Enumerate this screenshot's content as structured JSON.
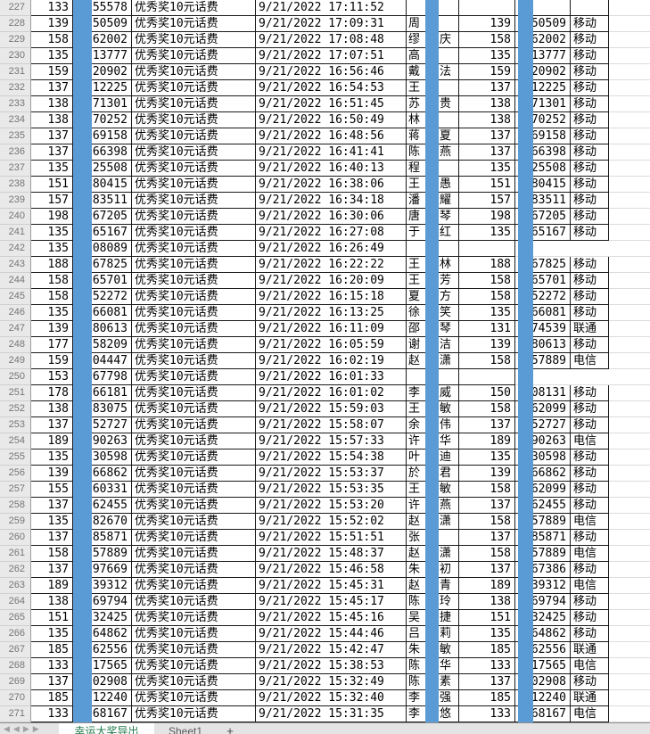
{
  "meta": {
    "app_kind": "spreadsheet",
    "visible_row_range": "227-271",
    "mask_color": "#5B9BD5",
    "row_header_bg": "#e9e9e9",
    "active_tab_text_color": "#217a4b"
  },
  "sheet": {
    "nav_icons": [
      "first-sheet-icon",
      "prev-sheet-icon",
      "next-sheet-icon",
      "last-sheet-icon"
    ],
    "nav_glyphs": "◀ ◀ ▶ ▶",
    "tabs": [
      {
        "label": "幸运大奖导出",
        "active": true
      },
      {
        "label": "Sheet1",
        "active": false
      }
    ],
    "add_label": "+"
  },
  "columns": {
    "row_header": "",
    "phone_prefix": "",
    "masked": "",
    "phone_suffix": "",
    "prize": "",
    "datetime": "",
    "winner_name": "",
    "phone_prefix_2": "",
    "phone_suffix_2": "",
    "carrier": ""
  },
  "prize_label": "优秀奖10元话费",
  "rows": [
    {
      "no": "227",
      "lp": "133",
      "ls": "55578",
      "dt": "9/21/2022 17:11:52",
      "n1": "",
      "n2": "",
      "rp": "",
      "rs": "",
      "car": "",
      "rmode": "empty-full"
    },
    {
      "no": "228",
      "lp": "139",
      "ls": "50509",
      "dt": "9/21/2022 17:09:31",
      "n1": "周",
      "n2": "",
      "rp": "139",
      "rs": "50509",
      "car": "移动",
      "rmode": "data"
    },
    {
      "no": "229",
      "lp": "158",
      "ls": "62002",
      "dt": "9/21/2022 17:08:48",
      "n1": "缪",
      "n2": "庆",
      "rp": "158",
      "rs": "62002",
      "car": "移动",
      "rmode": "data"
    },
    {
      "no": "230",
      "lp": "135",
      "ls": "13777",
      "dt": "9/21/2022 17:07:51",
      "n1": "高",
      "n2": "",
      "rp": "135",
      "rs": "13777",
      "car": "移动",
      "rmode": "data"
    },
    {
      "no": "231",
      "lp": "159",
      "ls": "20902",
      "dt": "9/21/2022 16:56:46",
      "n1": "戴",
      "n2": "法",
      "rp": "159",
      "rs": "20902",
      "car": "移动",
      "rmode": "data"
    },
    {
      "no": "232",
      "lp": "137",
      "ls": "12225",
      "dt": "9/21/2022 16:54:53",
      "n1": "王",
      "n2": "",
      "rp": "137",
      "rs": "12225",
      "car": "移动",
      "rmode": "data"
    },
    {
      "no": "233",
      "lp": "138",
      "ls": "71301",
      "dt": "9/21/2022 16:51:45",
      "n1": "苏",
      "n2": "贵",
      "rp": "138",
      "rs": "71301",
      "car": "移动",
      "rmode": "data"
    },
    {
      "no": "234",
      "lp": "138",
      "ls": "70252",
      "dt": "9/21/2022 16:50:49",
      "n1": "林",
      "n2": "",
      "rp": "138",
      "rs": "70252",
      "car": "移动",
      "rmode": "data"
    },
    {
      "no": "235",
      "lp": "137",
      "ls": "69158",
      "dt": "9/21/2022 16:48:56",
      "n1": "蒋",
      "n2": "夏",
      "rp": "137",
      "rs": "69158",
      "car": "移动",
      "rmode": "data"
    },
    {
      "no": "236",
      "lp": "137",
      "ls": "66398",
      "dt": "9/21/2022 16:41:41",
      "n1": "陈",
      "n2": "燕",
      "rp": "137",
      "rs": "66398",
      "car": "移动",
      "rmode": "data"
    },
    {
      "no": "237",
      "lp": "135",
      "ls": "25508",
      "dt": "9/21/2022 16:40:13",
      "n1": "程",
      "n2": "",
      "rp": "135",
      "rs": "25508",
      "car": "移动",
      "rmode": "data"
    },
    {
      "no": "238",
      "lp": "151",
      "ls": "80415",
      "dt": "9/21/2022 16:38:06",
      "n1": "王",
      "n2": "愚",
      "rp": "151",
      "rs": "80415",
      "car": "移动",
      "rmode": "data"
    },
    {
      "no": "239",
      "lp": "157",
      "ls": "83511",
      "dt": "9/21/2022 16:34:18",
      "n1": "潘",
      "n2": "耀",
      "rp": "157",
      "rs": "83511",
      "car": "移动",
      "rmode": "data"
    },
    {
      "no": "240",
      "lp": "198",
      "ls": "67205",
      "dt": "9/21/2022 16:30:06",
      "n1": "唐",
      "n2": "琴",
      "rp": "198",
      "rs": "67205",
      "car": "移动",
      "rmode": "data"
    },
    {
      "no": "241",
      "lp": "135",
      "ls": "65167",
      "dt": "9/21/2022 16:27:08",
      "n1": "于",
      "n2": "红",
      "rp": "135",
      "rs": "65167",
      "car": "移动",
      "rmode": "data"
    },
    {
      "no": "242",
      "lp": "135",
      "ls": "08089",
      "dt": "9/21/2022 16:26:49",
      "n1": "",
      "n2": "",
      "rp": "",
      "rs": "",
      "car": "",
      "rmode": "empty-partial"
    },
    {
      "no": "243",
      "lp": "188",
      "ls": "67825",
      "dt": "9/21/2022 16:22:22",
      "n1": "王",
      "n2": "林",
      "rp": "188",
      "rs": "67825",
      "car": "移动",
      "rmode": "data"
    },
    {
      "no": "244",
      "lp": "158",
      "ls": "65701",
      "dt": "9/21/2022 16:20:09",
      "n1": "王",
      "n2": "芳",
      "rp": "158",
      "rs": "65701",
      "car": "移动",
      "rmode": "data"
    },
    {
      "no": "245",
      "lp": "158",
      "ls": "52272",
      "dt": "9/21/2022 16:15:18",
      "n1": "夏",
      "n2": "方",
      "rp": "158",
      "rs": "52272",
      "car": "移动",
      "rmode": "data"
    },
    {
      "no": "246",
      "lp": "135",
      "ls": "66081",
      "dt": "9/21/2022 16:13:25",
      "n1": "徐",
      "n2": "笑",
      "rp": "135",
      "rs": "66081",
      "car": "移动",
      "rmode": "data"
    },
    {
      "no": "247",
      "lp": "139",
      "ls": "80613",
      "dt": "9/21/2022 16:11:09",
      "n1": "邵",
      "n2": "琴",
      "rp": "131",
      "rs": "74539",
      "car": "联通",
      "rmode": "data"
    },
    {
      "no": "248",
      "lp": "177",
      "ls": "58209",
      "dt": "9/21/2022 16:05:59",
      "n1": "谢",
      "n2": "洁",
      "rp": "139",
      "rs": "80613",
      "car": "移动",
      "rmode": "data"
    },
    {
      "no": "249",
      "lp": "159",
      "ls": "04447",
      "dt": "9/21/2022 16:02:19",
      "n1": "赵",
      "n2": "潇",
      "rp": "158",
      "rs": "57889",
      "car": "电信",
      "rmode": "data"
    },
    {
      "no": "250",
      "lp": "153",
      "ls": "67798",
      "dt": "9/21/2022 16:01:33",
      "n1": "",
      "n2": "",
      "rp": "",
      "rs": "",
      "car": "",
      "rmode": "empty-partial"
    },
    {
      "no": "251",
      "lp": "178",
      "ls": "66181",
      "dt": "9/21/2022 16:01:02",
      "n1": "李",
      "n2": "威",
      "rp": "150",
      "rs": "08131",
      "car": "移动",
      "rmode": "data"
    },
    {
      "no": "252",
      "lp": "138",
      "ls": "83075",
      "dt": "9/21/2022 15:59:03",
      "n1": "王",
      "n2": "敏",
      "rp": "158",
      "rs": "62099",
      "car": "移动",
      "rmode": "data"
    },
    {
      "no": "253",
      "lp": "137",
      "ls": "52727",
      "dt": "9/21/2022 15:58:07",
      "n1": "余",
      "n2": "伟",
      "rp": "137",
      "rs": "52727",
      "car": "移动",
      "rmode": "data"
    },
    {
      "no": "254",
      "lp": "189",
      "ls": "90263",
      "dt": "9/21/2022 15:57:33",
      "n1": "许",
      "n2": "华",
      "rp": "189",
      "rs": "90263",
      "car": "电信",
      "rmode": "data"
    },
    {
      "no": "255",
      "lp": "135",
      "ls": "30598",
      "dt": "9/21/2022 15:54:38",
      "n1": "叶",
      "n2": "迪",
      "rp": "135",
      "rs": "30598",
      "car": "移动",
      "rmode": "data"
    },
    {
      "no": "256",
      "lp": "139",
      "ls": "66862",
      "dt": "9/21/2022 15:53:37",
      "n1": "於",
      "n2": "君",
      "rp": "139",
      "rs": "66862",
      "car": "移动",
      "rmode": "data"
    },
    {
      "no": "257",
      "lp": "155",
      "ls": "60331",
      "dt": "9/21/2022 15:53:35",
      "n1": "王",
      "n2": "敏",
      "rp": "158",
      "rs": "62099",
      "car": "移动",
      "rmode": "data"
    },
    {
      "no": "258",
      "lp": "137",
      "ls": "62455",
      "dt": "9/21/2022 15:53:20",
      "n1": "许",
      "n2": "燕",
      "rp": "137",
      "rs": "62455",
      "car": "移动",
      "rmode": "data"
    },
    {
      "no": "259",
      "lp": "135",
      "ls": "82670",
      "dt": "9/21/2022 15:52:02",
      "n1": "赵",
      "n2": "潇",
      "rp": "158",
      "rs": "57889",
      "car": "电信",
      "rmode": "data"
    },
    {
      "no": "260",
      "lp": "137",
      "ls": "85871",
      "dt": "9/21/2022 15:51:51",
      "n1": "张",
      "n2": "",
      "rp": "137",
      "rs": "85871",
      "car": "移动",
      "rmode": "data"
    },
    {
      "no": "261",
      "lp": "158",
      "ls": "57889",
      "dt": "9/21/2022 15:48:37",
      "n1": "赵",
      "n2": "潇",
      "rp": "158",
      "rs": "57889",
      "car": "电信",
      "rmode": "data"
    },
    {
      "no": "262",
      "lp": "137",
      "ls": "97669",
      "dt": "9/21/2022 15:46:58",
      "n1": "朱",
      "n2": "初",
      "rp": "137",
      "rs": "67386",
      "car": "移动",
      "rmode": "data"
    },
    {
      "no": "263",
      "lp": "189",
      "ls": "39312",
      "dt": "9/21/2022 15:45:31",
      "n1": "赵",
      "n2": "青",
      "rp": "189",
      "rs": "39312",
      "car": "电信",
      "rmode": "data"
    },
    {
      "no": "264",
      "lp": "138",
      "ls": "69794",
      "dt": "9/21/2022 15:45:17",
      "n1": "陈",
      "n2": "玲",
      "rp": "138",
      "rs": "69794",
      "car": "移动",
      "rmode": "data"
    },
    {
      "no": "265",
      "lp": "151",
      "ls": "32425",
      "dt": "9/21/2022 15:45:16",
      "n1": "吴",
      "n2": "捷",
      "rp": "151",
      "rs": "32425",
      "car": "移动",
      "rmode": "data"
    },
    {
      "no": "266",
      "lp": "135",
      "ls": "64862",
      "dt": "9/21/2022 15:44:46",
      "n1": "吕",
      "n2": "莉",
      "rp": "135",
      "rs": "64862",
      "car": "移动",
      "rmode": "data"
    },
    {
      "no": "267",
      "lp": "185",
      "ls": "62556",
      "dt": "9/21/2022 15:42:47",
      "n1": "朱",
      "n2": "敏",
      "rp": "185",
      "rs": "62556",
      "car": "联通",
      "rmode": "data"
    },
    {
      "no": "268",
      "lp": "133",
      "ls": "17565",
      "dt": "9/21/2022 15:38:53",
      "n1": "陈",
      "n2": "华",
      "rp": "133",
      "rs": "17565",
      "car": "电信",
      "rmode": "data"
    },
    {
      "no": "269",
      "lp": "137",
      "ls": "02908",
      "dt": "9/21/2022 15:32:49",
      "n1": "陈",
      "n2": "素",
      "rp": "137",
      "rs": "02908",
      "car": "移动",
      "rmode": "data"
    },
    {
      "no": "270",
      "lp": "185",
      "ls": "12240",
      "dt": "9/21/2022 15:32:40",
      "n1": "李",
      "n2": "强",
      "rp": "185",
      "rs": "12240",
      "car": "联通",
      "rmode": "data"
    },
    {
      "no": "271",
      "lp": "133",
      "ls": "68167",
      "dt": "9/21/2022 15:31:35",
      "n1": "李",
      "n2": "悠",
      "rp": "133",
      "rs": "68167",
      "car": "电信",
      "rmode": "data"
    }
  ]
}
